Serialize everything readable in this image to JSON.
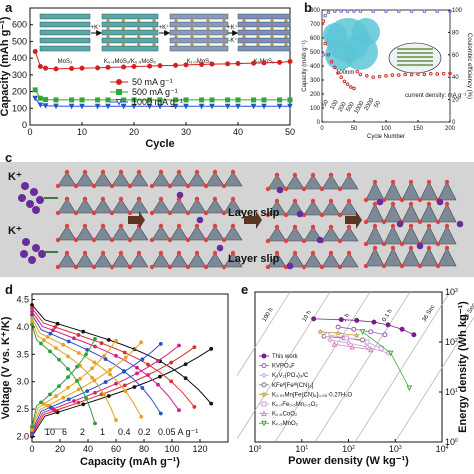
{
  "panels": {
    "a": "a",
    "b": "b",
    "c": "c",
    "d": "d",
    "e": "e"
  },
  "panel_a": {
    "stages": [
      "MoS₂",
      "K₀.₄MoS₂/K₀.₅MoS₂",
      "K₁.₀MoS₂",
      "KₓMoS₂"
    ],
    "arrows": [
      "+K⁺",
      "+K⁺",
      "+K⁺",
      "-K⁺"
    ]
  },
  "panel_b": {
    "inset_label": "current density: mA g⁻¹",
    "scale_bar": "100nm",
    "rate_labels": [
      "50",
      "100",
      "200",
      "500",
      "1000",
      "2000",
      "50"
    ]
  },
  "panel_c": {
    "ion_labels": [
      "K⁺",
      "K⁺"
    ],
    "slip_labels": [
      "Layer slip",
      "Layer slip"
    ]
  },
  "panel_d": {
    "rate_labels": [
      "10",
      "6",
      "2",
      "1",
      "0.4",
      "0.2",
      "0.05 A g⁻¹"
    ],
    "rate_colors": [
      "#2e9e3a",
      "#e8a020",
      "#e8a020",
      "#2950c8",
      "#d0208a",
      "#d83030",
      "#111111"
    ]
  },
  "panel_e": {
    "lines": [
      "100 h",
      "10 h",
      "1 h",
      "0.1 h",
      "36 Sec",
      "3.6 Sec"
    ],
    "legend": [
      "This work",
      "KVPO₄F",
      "K₃V₂(PO₄)₃/C",
      "KFeᴵᴵ[Feᴵᴵᴵ(CN)₆]",
      "K₁.₉₃Mn[Fe(CN)₆]₀.₉₅·0.27H₂O",
      "K₀.₇Fe₀.₅Mn₀.₅O₂",
      "K₀.₆CoO₂",
      "K₀.₃MnO₂"
    ]
  },
  "chart_data": [
    {
      "type": "scatter",
      "xlabel": "Cycle",
      "ylabel": "Capacity (mAh g⁻¹)",
      "xlim": [
        0,
        50
      ],
      "ylim": [
        0,
        700
      ],
      "xticks": [
        0,
        10,
        20,
        30,
        40,
        50
      ],
      "yticks": [
        0,
        100,
        200,
        300,
        400,
        500,
        600
      ],
      "legend_position": "middle",
      "series": [
        {
          "name": "50 mA g⁻¹",
          "color": "#d42020",
          "marker": "circle",
          "x": [
            1,
            2,
            3,
            5,
            8,
            10,
            13,
            15,
            18,
            20,
            23,
            25,
            28,
            30,
            33,
            35,
            38,
            40,
            43,
            45,
            48,
            50
          ],
          "y": [
            440,
            350,
            340,
            336,
            338,
            340,
            342,
            345,
            347,
            350,
            352,
            355,
            357,
            360,
            362,
            364,
            366,
            368,
            370,
            372,
            375,
            380
          ]
        },
        {
          "name": "500 mA g⁻¹",
          "color": "#2fa83a",
          "marker": "square",
          "x": [
            1,
            2,
            3,
            5,
            8,
            10,
            13,
            15,
            18,
            20,
            23,
            25,
            28,
            30,
            33,
            35,
            38,
            40,
            43,
            45,
            48,
            50
          ],
          "y": [
            210,
            160,
            152,
            150,
            150,
            150,
            150,
            150,
            150,
            150,
            150,
            150,
            150,
            150,
            150,
            150,
            150,
            150,
            150,
            150,
            150,
            150
          ]
        },
        {
          "name": "1000 mA g⁻¹",
          "color": "#2a4fd0",
          "marker": "triangle-down",
          "x": [
            1,
            2,
            3,
            5,
            8,
            10,
            13,
            15,
            18,
            20,
            23,
            25,
            28,
            30,
            33,
            35,
            38,
            40,
            43,
            45,
            48,
            50
          ],
          "y": [
            160,
            120,
            115,
            113,
            112,
            112,
            112,
            112,
            112,
            112,
            112,
            112,
            112,
            112,
            112,
            112,
            112,
            112,
            112,
            112,
            112,
            112
          ]
        }
      ]
    },
    {
      "type": "scatter",
      "xlabel": "Cycle Number",
      "ylabel": "Capacity (mAh g⁻¹)",
      "y2label": "Coulombic efficiency (%)",
      "xlim": [
        0,
        200
      ],
      "ylim": [
        0,
        800
      ],
      "y2lim": [
        0,
        100
      ],
      "xticks": [
        0,
        50,
        100,
        150,
        200
      ],
      "yticks": [
        0,
        100,
        200,
        300,
        400,
        500,
        600,
        700,
        800
      ],
      "y2ticks": [
        0,
        20,
        40,
        60,
        80,
        100
      ],
      "series": [
        {
          "name": "Capacity",
          "color": "#d03030",
          "x": [
            2,
            5,
            10,
            15,
            20,
            25,
            30,
            35,
            40,
            45,
            50,
            55,
            60,
            70,
            80,
            90,
            100,
            110,
            120,
            130,
            140,
            150,
            160,
            170,
            180,
            190,
            200
          ],
          "y": [
            720,
            560,
            480,
            430,
            390,
            350,
            320,
            290,
            270,
            250,
            240,
            360,
            340,
            330,
            320,
            325,
            330,
            335,
            335,
            340,
            338,
            342,
            340,
            345,
            343,
            345,
            347
          ]
        },
        {
          "name": "Coulombic efficiency",
          "color": "#6b6bd8",
          "x": [
            2,
            5,
            10,
            20,
            30,
            40,
            50,
            60,
            80,
            100,
            120,
            140,
            160,
            180,
            200
          ],
          "y2": [
            60,
            95,
            98,
            99,
            99,
            99,
            99,
            99,
            99,
            99,
            99,
            99,
            99,
            99,
            99
          ]
        }
      ]
    },
    {
      "type": "line",
      "xlabel": "Capacity (mAh g⁻¹)",
      "ylabel": "Voltage (V vs. K⁺/K)",
      "xlim": [
        0,
        140
      ],
      "ylim": [
        1.9,
        4.6
      ],
      "xticks": [
        0,
        20,
        40,
        60,
        80,
        100,
        120
      ],
      "yticks": [
        2.0,
        2.5,
        3.0,
        3.5,
        4.0,
        4.5
      ],
      "series": [
        {
          "name": "0.05 A g⁻¹",
          "color": "#111111",
          "max": 128
        },
        {
          "name": "0.2",
          "color": "#d83030",
          "max": 116
        },
        {
          "name": "0.4",
          "color": "#d0208a",
          "max": 105
        },
        {
          "name": "1",
          "color": "#2950c8",
          "max": 92
        },
        {
          "name": "2",
          "color": "#e8a020",
          "max": 78
        },
        {
          "name": "6",
          "color": "#e8a020",
          "max": 60
        },
        {
          "name": "10",
          "color": "#2e9e3a",
          "max": 45
        }
      ]
    },
    {
      "type": "scatter",
      "xlabel": "Power density (W kg⁻¹)",
      "ylabel": "Energy density (Wh kg⁻¹)",
      "xscale": "log",
      "yscale": "log",
      "xlim": [
        1,
        10000
      ],
      "ylim": [
        1,
        1000
      ],
      "xticks": [
        1,
        10,
        100,
        1000,
        10000
      ],
      "yticks": [
        1,
        10,
        100,
        1000
      ],
      "series": [
        {
          "name": "This work",
          "color": "#7a1f8a",
          "marker": "filled-circle",
          "x": [
            18,
            70,
            150,
            350,
            700,
            1400,
            2500
          ],
          "y": [
            290,
            280,
            270,
            250,
            220,
            180,
            140
          ]
        },
        {
          "name": "KVPO₄F",
          "color": "#9b59b6",
          "marker": "circle",
          "x": [
            60,
            130,
            300,
            600
          ],
          "y": [
            200,
            180,
            160,
            140
          ]
        },
        {
          "name": "K₃V₂(PO₄)₃/C",
          "color": "#c79ce0",
          "marker": "diamond",
          "x": [
            40,
            100,
            250,
            700
          ],
          "y": [
            110,
            95,
            80,
            60
          ]
        },
        {
          "name": "KFeᴵᴵ[Feᴵᴵᴵ(CN)₆]",
          "color": "#7a7a7a",
          "marker": "circle",
          "x": [
            30,
            80,
            200
          ],
          "y": [
            130,
            120,
            110
          ]
        },
        {
          "name": "K₁.₉₃Mn[Fe(CN)₆]₀.₉₅·0.27H₂O",
          "color": "#c0a040",
          "marker": "star",
          "x": [
            25,
            60,
            150
          ],
          "y": [
            160,
            150,
            135
          ]
        },
        {
          "name": "K₀.₇Fe₀.₅Mn₀.₅O₂",
          "color": "#d89ad8",
          "marker": "square",
          "x": [
            35,
            90,
            250,
            500
          ],
          "y": [
            140,
            120,
            100,
            75
          ]
        },
        {
          "name": "K₀.₆CoO₂",
          "color": "#e07ab0",
          "marker": "triangle-up",
          "x": [
            50,
            120,
            300
          ],
          "y": [
            90,
            80,
            70
          ]
        },
        {
          "name": "K₀.₃MnO₂",
          "color": "#3aaa3a",
          "marker": "triangle-down",
          "x": [
            200,
            800,
            2000
          ],
          "y": [
            160,
            60,
            12
          ]
        }
      ]
    }
  ]
}
